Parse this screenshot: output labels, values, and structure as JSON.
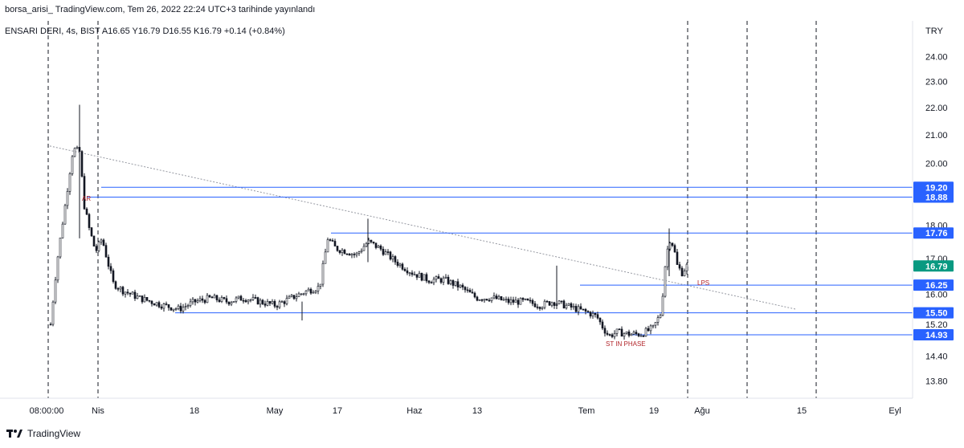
{
  "header": {
    "publish_line": "borsa_arisi_ TradingView.com, Tem 26, 2022 22:24 UTC+3 tarihinde yayınlandı"
  },
  "legend": {
    "text": "ENSARI DERI, 4s, BIST  A16.65  Y16.79  D16.55  K16.79  +0.14 (+0.84%)"
  },
  "currency": "TRY",
  "footer": {
    "brand": "TradingView"
  },
  "colors": {
    "candle": "#131722",
    "level_line": "#2962ff",
    "badge": "#2962ff",
    "last_badge": "#089981",
    "annotation": "#b2252a",
    "trendline": "#9598a1"
  },
  "chart_data": {
    "type": "candlestick",
    "symbol": "ENSARI DERI",
    "interval": "4s",
    "exchange": "BIST",
    "last": {
      "open": 16.65,
      "high": 16.79,
      "low": 16.55,
      "close": 16.79,
      "change": 0.14,
      "change_pct": 0.84
    },
    "y_scale": "log",
    "ylim": [
      13.4,
      25.5
    ],
    "y_ticks": [
      "13.80",
      "14.40",
      "15.20",
      "16.00",
      "17.00",
      "18.00",
      "20.00",
      "21.00",
      "22.00",
      "23.00",
      "24.00"
    ],
    "x_ticks": [
      "08:00:00",
      "Nis",
      "18",
      "May",
      "17",
      "Haz",
      "13",
      "Tem",
      "19",
      "Ağu",
      "15",
      "Eyl"
    ],
    "levels": [
      {
        "value": 19.2,
        "label": "19.20"
      },
      {
        "value": 18.88,
        "label": "18.88"
      },
      {
        "value": 17.76,
        "label": "17.76"
      },
      {
        "value": 16.25,
        "label": "16.25"
      },
      {
        "value": 15.5,
        "label": "15.50"
      },
      {
        "value": 14.93,
        "label": "14.93"
      }
    ],
    "last_price_label": "16.79",
    "annotations": [
      {
        "text": "AR",
        "x_tick": "Nis",
        "value": 19.0
      },
      {
        "text": "LPS",
        "x_tick": "Tem",
        "value": 16.3
      },
      {
        "text": "ST IN PHASE",
        "x_tick": "Tem",
        "value": 14.6
      }
    ],
    "trendline": {
      "start": 20.6,
      "end": 15.6
    },
    "price_path": [
      [
        0,
        15.2
      ],
      [
        8,
        16.9
      ],
      [
        18,
        18.6
      ],
      [
        28,
        20.5
      ],
      [
        36,
        20.4
      ],
      [
        42,
        18.6
      ],
      [
        48,
        17.9
      ],
      [
        56,
        17.2
      ],
      [
        64,
        17.6
      ],
      [
        70,
        17.0
      ],
      [
        78,
        16.3
      ],
      [
        90,
        16.1
      ],
      [
        110,
        15.9
      ],
      [
        140,
        15.7
      ],
      [
        160,
        15.6
      ],
      [
        180,
        15.8
      ],
      [
        200,
        15.9
      ],
      [
        220,
        15.8
      ],
      [
        240,
        15.9
      ],
      [
        260,
        15.8
      ],
      [
        280,
        15.7
      ],
      [
        300,
        15.9
      ],
      [
        320,
        16.1
      ],
      [
        335,
        16.2
      ],
      [
        345,
        17.6
      ],
      [
        355,
        17.3
      ],
      [
        370,
        17.2
      ],
      [
        380,
        17.1
      ],
      [
        395,
        17.5
      ],
      [
        410,
        17.3
      ],
      [
        430,
        16.9
      ],
      [
        450,
        16.6
      ],
      [
        470,
        16.4
      ],
      [
        490,
        16.4
      ],
      [
        510,
        16.2
      ],
      [
        530,
        15.9
      ],
      [
        550,
        15.9
      ],
      [
        570,
        15.8
      ],
      [
        590,
        15.8
      ],
      [
        610,
        15.7
      ],
      [
        625,
        15.8
      ],
      [
        640,
        15.7
      ],
      [
        655,
        15.6
      ],
      [
        670,
        15.5
      ],
      [
        680,
        15.4
      ],
      [
        688,
        15.1
      ],
      [
        695,
        14.9
      ],
      [
        705,
        15.0
      ],
      [
        720,
        14.95
      ],
      [
        735,
        14.95
      ],
      [
        750,
        15.1
      ],
      [
        760,
        15.5
      ],
      [
        765,
        16.8
      ],
      [
        770,
        17.6
      ],
      [
        775,
        17.4
      ],
      [
        780,
        16.8
      ],
      [
        786,
        16.6
      ],
      [
        792,
        16.79
      ]
    ],
    "wicks": [
      {
        "x": 36,
        "high": 22.1,
        "low": 17.6
      },
      {
        "x": 395,
        "high": 18.2,
        "low": 16.9
      },
      {
        "x": 630,
        "high": 16.8,
        "low": 15.6
      },
      {
        "x": 770,
        "high": 17.9,
        "low": 16.5
      },
      {
        "x": 313,
        "high": 15.8,
        "low": 15.3
      }
    ],
    "vlines_x_index": [
      0,
      62,
      772,
      846,
      930
    ]
  }
}
